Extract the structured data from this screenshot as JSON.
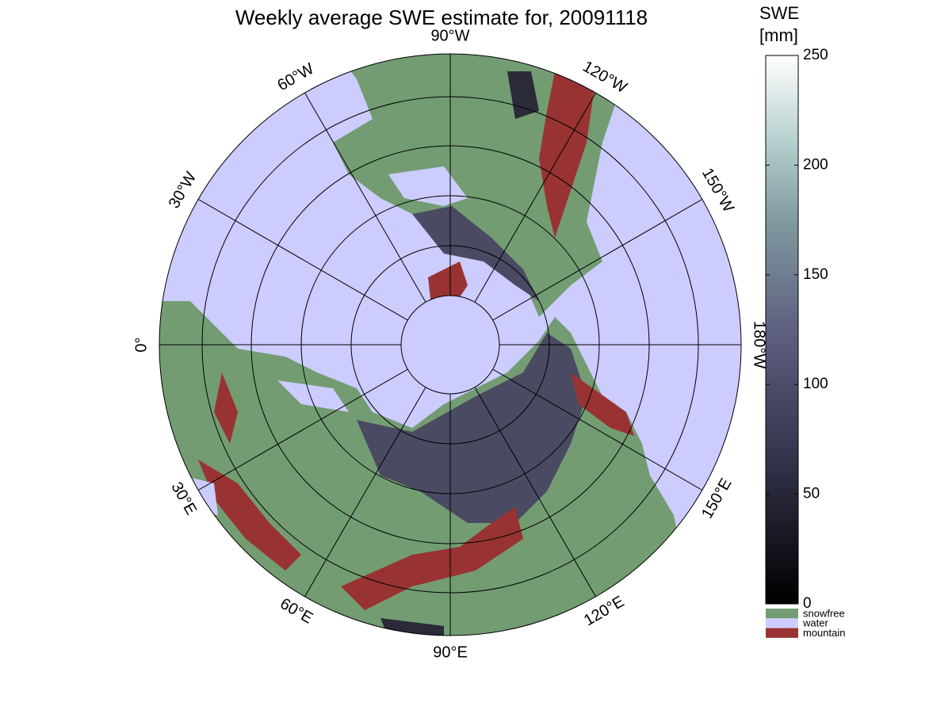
{
  "title": "Weekly average SWE estimate for, 20091118",
  "meridian_labels": [
    {
      "lon": -90,
      "label": "90°W"
    },
    {
      "lon": -120,
      "label": "120°W"
    },
    {
      "lon": -150,
      "label": "150°W"
    },
    {
      "lon": 180,
      "label": "180°W"
    },
    {
      "lon": 150,
      "label": "150°E"
    },
    {
      "lon": 120,
      "label": "120°E"
    },
    {
      "lon": 90,
      "label": "90°E"
    },
    {
      "lon": 60,
      "label": "60°E"
    },
    {
      "lon": 30,
      "label": "30°E"
    },
    {
      "lon": 0,
      "label": "0°"
    },
    {
      "lon": -30,
      "label": "30°W"
    },
    {
      "lon": -60,
      "label": "60°W"
    }
  ],
  "colorbar": {
    "label": [
      "SWE",
      "[mm]"
    ],
    "lim": [
      0,
      250
    ],
    "ticks": [
      0,
      50,
      100,
      150,
      200,
      250
    ]
  },
  "legend": [
    {
      "name": "snowfree",
      "color": "#739c73"
    },
    {
      "name": "water",
      "color": "#ccccff"
    },
    {
      "name": "mountain",
      "color": "#993333"
    }
  ]
}
